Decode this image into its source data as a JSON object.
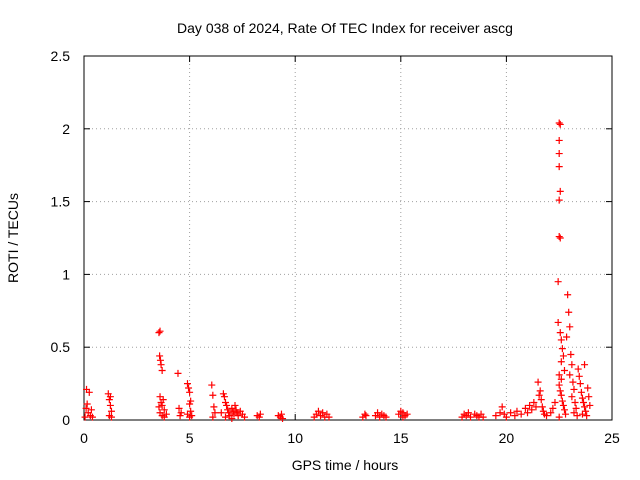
{
  "chart_data": {
    "type": "scatter",
    "title": "Day 038 of 2024, Rate Of TEC Index for receiver ascg",
    "xlabel": "GPS time / hours",
    "ylabel": "ROTI / TECUs",
    "xlim": [
      0,
      25
    ],
    "ylim": [
      0,
      2.5
    ],
    "xticks": [
      0,
      5,
      10,
      15,
      20,
      25
    ],
    "xtick_labels": [
      "0",
      "5",
      "10",
      "15",
      "20",
      "25"
    ],
    "yticks": [
      0,
      0.5,
      1,
      1.5,
      2,
      2.5
    ],
    "ytick_labels": [
      "0",
      "0.5",
      "1",
      "1.5",
      "2",
      "2.5"
    ],
    "grid": true,
    "marker": "plus",
    "series": [
      {
        "name": "ROTI",
        "color": "#ff0000",
        "points": [
          [
            0.05,
            0.02
          ],
          [
            0.1,
            0.08
          ],
          [
            0.12,
            0.21
          ],
          [
            0.15,
            0.11
          ],
          [
            0.2,
            0.05
          ],
          [
            0.25,
            0.19
          ],
          [
            0.3,
            0.03
          ],
          [
            0.35,
            0.07
          ],
          [
            0.4,
            0.02
          ],
          [
            1.15,
            0.18
          ],
          [
            1.2,
            0.14
          ],
          [
            1.25,
            0.1
          ],
          [
            1.3,
            0.06
          ],
          [
            1.2,
            0.03
          ],
          [
            1.25,
            0.16
          ],
          [
            1.3,
            0.02
          ],
          [
            3.55,
            0.6
          ],
          [
            3.6,
            0.61
          ],
          [
            3.58,
            0.44
          ],
          [
            3.62,
            0.41
          ],
          [
            3.65,
            0.38
          ],
          [
            3.7,
            0.34
          ],
          [
            3.6,
            0.16
          ],
          [
            3.65,
            0.12
          ],
          [
            3.7,
            0.1
          ],
          [
            3.75,
            0.14
          ],
          [
            3.8,
            0.07
          ],
          [
            3.6,
            0.05
          ],
          [
            3.7,
            0.03
          ],
          [
            3.8,
            0.02
          ],
          [
            3.9,
            0.04
          ],
          [
            3.55,
            0.09
          ],
          [
            4.45,
            0.32
          ],
          [
            4.5,
            0.08
          ],
          [
            4.55,
            0.03
          ],
          [
            4.6,
            0.05
          ],
          [
            4.9,
            0.25
          ],
          [
            4.95,
            0.22
          ],
          [
            5.0,
            0.19
          ],
          [
            5.0,
            0.11
          ],
          [
            5.05,
            0.13
          ],
          [
            4.9,
            0.04
          ],
          [
            5.0,
            0.02
          ],
          [
            5.05,
            0.06
          ],
          [
            5.1,
            0.03
          ],
          [
            6.05,
            0.24
          ],
          [
            6.1,
            0.17
          ],
          [
            6.15,
            0.09
          ],
          [
            6.2,
            0.05
          ],
          [
            6.1,
            0.02
          ],
          [
            6.5,
            0.05
          ],
          [
            6.6,
            0.18
          ],
          [
            6.65,
            0.16
          ],
          [
            6.7,
            0.12
          ],
          [
            6.75,
            0.1
          ],
          [
            6.8,
            0.07
          ],
          [
            6.85,
            0.05
          ],
          [
            6.9,
            0.03
          ],
          [
            7.0,
            0.08
          ],
          [
            7.05,
            0.06
          ],
          [
            7.1,
            0.04
          ],
          [
            7.15,
            0.1
          ],
          [
            7.2,
            0.07
          ],
          [
            7.25,
            0.05
          ],
          [
            7.3,
            0.03
          ],
          [
            7.4,
            0.06
          ],
          [
            7.5,
            0.04
          ],
          [
            7.6,
            0.02
          ],
          [
            6.7,
            0.02
          ],
          [
            7.0,
            0.01
          ],
          [
            8.2,
            0.03
          ],
          [
            8.3,
            0.02
          ],
          [
            8.35,
            0.04
          ],
          [
            9.2,
            0.03
          ],
          [
            9.3,
            0.02
          ],
          [
            9.35,
            0.04
          ],
          [
            9.4,
            0.01
          ],
          [
            10.9,
            0.02
          ],
          [
            11.0,
            0.04
          ],
          [
            11.1,
            0.06
          ],
          [
            11.2,
            0.03
          ],
          [
            11.3,
            0.05
          ],
          [
            11.4,
            0.02
          ],
          [
            11.5,
            0.04
          ],
          [
            11.6,
            0.02
          ],
          [
            13.2,
            0.02
          ],
          [
            13.3,
            0.04
          ],
          [
            13.35,
            0.03
          ],
          [
            13.8,
            0.03
          ],
          [
            13.9,
            0.05
          ],
          [
            14.0,
            0.02
          ],
          [
            14.1,
            0.04
          ],
          [
            14.2,
            0.03
          ],
          [
            14.3,
            0.02
          ],
          [
            14.9,
            0.04
          ],
          [
            15.0,
            0.06
          ],
          [
            15.1,
            0.05
          ],
          [
            15.2,
            0.03
          ],
          [
            15.3,
            0.04
          ],
          [
            15.1,
            0.02
          ],
          [
            17.9,
            0.02
          ],
          [
            18.0,
            0.04
          ],
          [
            18.1,
            0.03
          ],
          [
            18.2,
            0.05
          ],
          [
            18.3,
            0.02
          ],
          [
            18.5,
            0.04
          ],
          [
            18.6,
            0.03
          ],
          [
            18.7,
            0.02
          ],
          [
            18.8,
            0.04
          ],
          [
            18.9,
            0.02
          ],
          [
            19.5,
            0.03
          ],
          [
            19.7,
            0.05
          ],
          [
            19.8,
            0.09
          ],
          [
            19.9,
            0.04
          ],
          [
            20.0,
            0.02
          ],
          [
            20.2,
            0.05
          ],
          [
            20.4,
            0.03
          ],
          [
            20.5,
            0.06
          ],
          [
            20.7,
            0.04
          ],
          [
            20.9,
            0.08
          ],
          [
            21.0,
            0.05
          ],
          [
            21.1,
            0.1
          ],
          [
            21.2,
            0.07
          ],
          [
            21.3,
            0.12
          ],
          [
            21.4,
            0.09
          ],
          [
            21.5,
            0.26
          ],
          [
            21.55,
            0.17
          ],
          [
            21.6,
            0.2
          ],
          [
            21.65,
            0.14
          ],
          [
            21.7,
            0.09
          ],
          [
            21.75,
            0.06
          ],
          [
            21.8,
            0.04
          ],
          [
            21.9,
            0.03
          ],
          [
            22.1,
            0.05
          ],
          [
            22.2,
            0.08
          ],
          [
            22.3,
            0.12
          ],
          [
            22.5,
            2.04
          ],
          [
            22.55,
            2.03
          ],
          [
            22.5,
            1.92
          ],
          [
            22.5,
            1.83
          ],
          [
            22.5,
            1.74
          ],
          [
            22.55,
            1.57
          ],
          [
            22.5,
            1.51
          ],
          [
            22.5,
            1.26
          ],
          [
            22.55,
            1.25
          ],
          [
            22.45,
            0.95
          ],
          [
            22.45,
            0.67
          ],
          [
            22.55,
            0.6
          ],
          [
            22.6,
            0.55
          ],
          [
            22.65,
            0.49
          ],
          [
            22.7,
            0.44
          ],
          [
            22.6,
            0.4
          ],
          [
            22.75,
            0.34
          ],
          [
            22.5,
            0.31
          ],
          [
            22.6,
            0.28
          ],
          [
            22.5,
            0.24
          ],
          [
            22.55,
            0.2
          ],
          [
            22.6,
            0.17
          ],
          [
            22.65,
            0.13
          ],
          [
            22.7,
            0.1
          ],
          [
            22.75,
            0.07
          ],
          [
            22.8,
            0.04
          ],
          [
            22.5,
            0.02
          ],
          [
            22.9,
            0.86
          ],
          [
            22.95,
            0.74
          ],
          [
            23.0,
            0.64
          ],
          [
            22.85,
            0.57
          ],
          [
            23.05,
            0.45
          ],
          [
            23.1,
            0.38
          ],
          [
            23.0,
            0.31
          ],
          [
            23.15,
            0.26
          ],
          [
            23.2,
            0.21
          ],
          [
            23.1,
            0.16
          ],
          [
            23.25,
            0.12
          ],
          [
            23.3,
            0.08
          ],
          [
            23.2,
            0.05
          ],
          [
            23.35,
            0.03
          ],
          [
            23.4,
            0.35
          ],
          [
            23.45,
            0.3
          ],
          [
            23.5,
            0.25
          ],
          [
            23.55,
            0.19
          ],
          [
            23.6,
            0.15
          ],
          [
            23.65,
            0.12
          ],
          [
            23.7,
            0.09
          ],
          [
            23.75,
            0.06
          ],
          [
            23.6,
            0.04
          ],
          [
            23.8,
            0.03
          ],
          [
            23.7,
            0.38
          ],
          [
            23.85,
            0.22
          ],
          [
            23.9,
            0.16
          ],
          [
            23.95,
            0.1
          ]
        ]
      }
    ]
  }
}
